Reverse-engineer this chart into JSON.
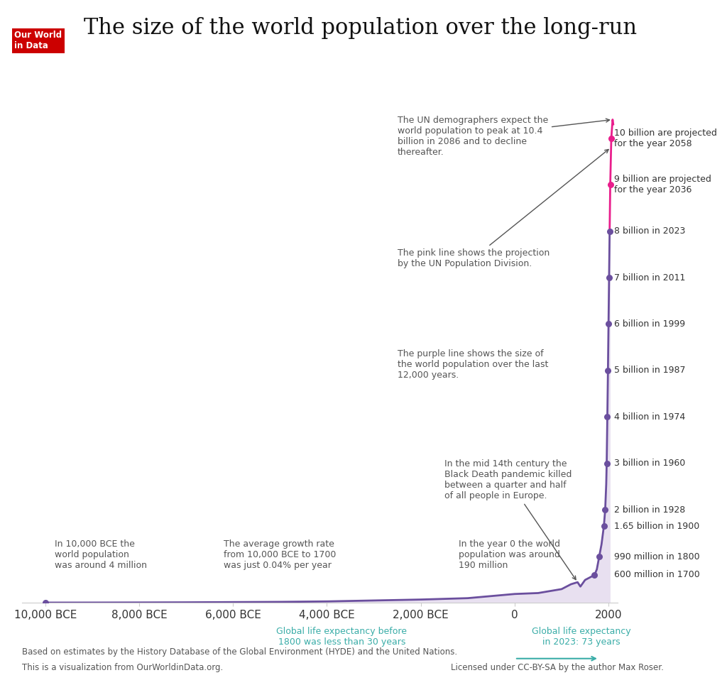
{
  "title": "The size of the world population over the long-run",
  "bg_color": "#ffffff",
  "purple_color": "#6B4F9E",
  "pink_color": "#E91E8C",
  "fill_color": "#E8E0F0",
  "annotation_color": "#555555",
  "teal_color": "#3AADA8",
  "owid_box_color": "#CC0000",
  "historical_data": {
    "years": [
      -10000,
      -9000,
      -8000,
      -7000,
      -6000,
      -5000,
      -4000,
      -3000,
      -2000,
      -1000,
      0,
      500,
      1000,
      1200,
      1340,
      1400,
      1500,
      1600,
      1700,
      1750,
      1800,
      1850,
      1900,
      1928,
      1950,
      1960,
      1974,
      1987,
      1999,
      2011,
      2023
    ],
    "population_millions": [
      4,
      5,
      7,
      10,
      15,
      20,
      30,
      50,
      70,
      100,
      190,
      210,
      295,
      400,
      443,
      350,
      492,
      545,
      600,
      720,
      990,
      1260,
      1650,
      2000,
      2550,
      3000,
      4000,
      5000,
      6000,
      7000,
      8000
    ]
  },
  "projection_data": {
    "years": [
      2023,
      2036,
      2058,
      2086,
      2100
    ],
    "population_millions": [
      8000,
      9000,
      10000,
      10400,
      10300
    ]
  },
  "milestone_points": [
    {
      "year": 1700,
      "pop": 600,
      "label": "600 million in 1700"
    },
    {
      "year": 1800,
      "pop": 990,
      "label": "990 million in 1800"
    },
    {
      "year": 1900,
      "pop": 1650,
      "label": "1.65 billion in 1900"
    },
    {
      "year": 1928,
      "pop": 2000,
      "label": "2 billion in 1928"
    },
    {
      "year": 1960,
      "pop": 3000,
      "label": "3 billion in 1960"
    },
    {
      "year": 1974,
      "pop": 4000,
      "label": "4 billion in 1974"
    },
    {
      "year": 1987,
      "pop": 5000,
      "label": "5 billion in 1987"
    },
    {
      "year": 1999,
      "pop": 6000,
      "label": "6 billion in 1999"
    },
    {
      "year": 2011,
      "pop": 7000,
      "label": "7 billion in 2011"
    },
    {
      "year": 2023,
      "pop": 8000,
      "label": "8 billion in 2023"
    },
    {
      "year": 2036,
      "pop": 9000,
      "label": "9 billion are projected\nfor the year 2036"
    },
    {
      "year": 2058,
      "pop": 10000,
      "label": "10 billion are projected\nfor the year 2058"
    }
  ],
  "x_tick_labels": [
    "10,000 BCE",
    "8,000 BCE",
    "6,000 BCE",
    "4,000 BCE",
    "2,000 BCE",
    "0",
    "2000"
  ],
  "x_tick_values": [
    -10000,
    -8000,
    -6000,
    -4000,
    -2000,
    0,
    2000
  ],
  "xlim": [
    -10500,
    2200
  ],
  "ylim": [
    0,
    11500
  ],
  "footer_text1": "Based on estimates by the History Database of the Global Environment (HYDE) and the United Nations.",
  "footer_text2": "This is a visualization from OurWorldinData.org.",
  "footer_text3": "Licensed under CC-BY-SA by the author Max Roser."
}
